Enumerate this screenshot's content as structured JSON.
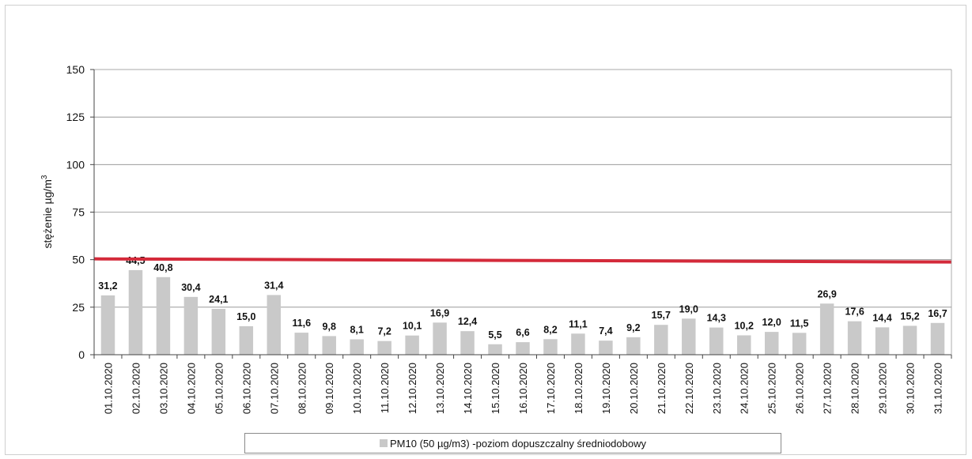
{
  "chart_data": {
    "type": "bar",
    "title": "",
    "xlabel": "",
    "ylabel": "stężenie µg/m",
    "ylabel_superscript": "3",
    "ylim": [
      0,
      150
    ],
    "yticks": [
      "0",
      "25",
      "50",
      "75",
      "100",
      "125",
      "150"
    ],
    "grid": true,
    "legend_position": "bottom",
    "categories": [
      "01.10.2020",
      "02.10.2020",
      "03.10.2020",
      "04.10.2020",
      "05.10.2020",
      "06.10.2020",
      "07.10.2020",
      "08.10.2020",
      "09.10.2020",
      "10.10.2020",
      "11.10.2020",
      "12.10.2020",
      "13.10.2020",
      "14.10.2020",
      "15.10.2020",
      "16.10.2020",
      "17.10.2020",
      "18.10.2020",
      "19.10.2020",
      "20.10.2020",
      "21.10.2020",
      "22.10.2020",
      "23.10.2020",
      "24.10.2020",
      "25.10.2020",
      "26.10.2020",
      "27.10.2020",
      "28.10.2020",
      "29.10.2020",
      "30.10.2020",
      "31.10.2020"
    ],
    "series": [
      {
        "name": "PM10 (50 µg/m3) -poziom dopuszczalny średniodobowy",
        "color": "#c9c9c9",
        "values": [
          31.2,
          44.5,
          40.8,
          30.4,
          24.1,
          15.0,
          31.4,
          11.6,
          9.8,
          8.1,
          7.2,
          10.1,
          16.9,
          12.4,
          5.5,
          6.6,
          8.2,
          11.1,
          7.4,
          9.2,
          15.7,
          19.0,
          14.3,
          10.2,
          12.0,
          11.5,
          26.9,
          17.6,
          14.4,
          15.2,
          16.7
        ],
        "labels": [
          "31,2",
          "44,5",
          "40,8",
          "30,4",
          "24,1",
          "15,0",
          "31,4",
          "11,6",
          "9,8",
          "8,1",
          "7,2",
          "10,1",
          "16,9",
          "12,4",
          "5,5",
          "6,6",
          "8,2",
          "11,1",
          "7,4",
          "9,2",
          "15,7",
          "19,0",
          "14,3",
          "10,2",
          "12,0",
          "11,5",
          "26,9",
          "17,6",
          "14,4",
          "15,2",
          "16,7"
        ]
      }
    ],
    "reference_line": {
      "value": 50,
      "color": "#d42a3a"
    }
  }
}
